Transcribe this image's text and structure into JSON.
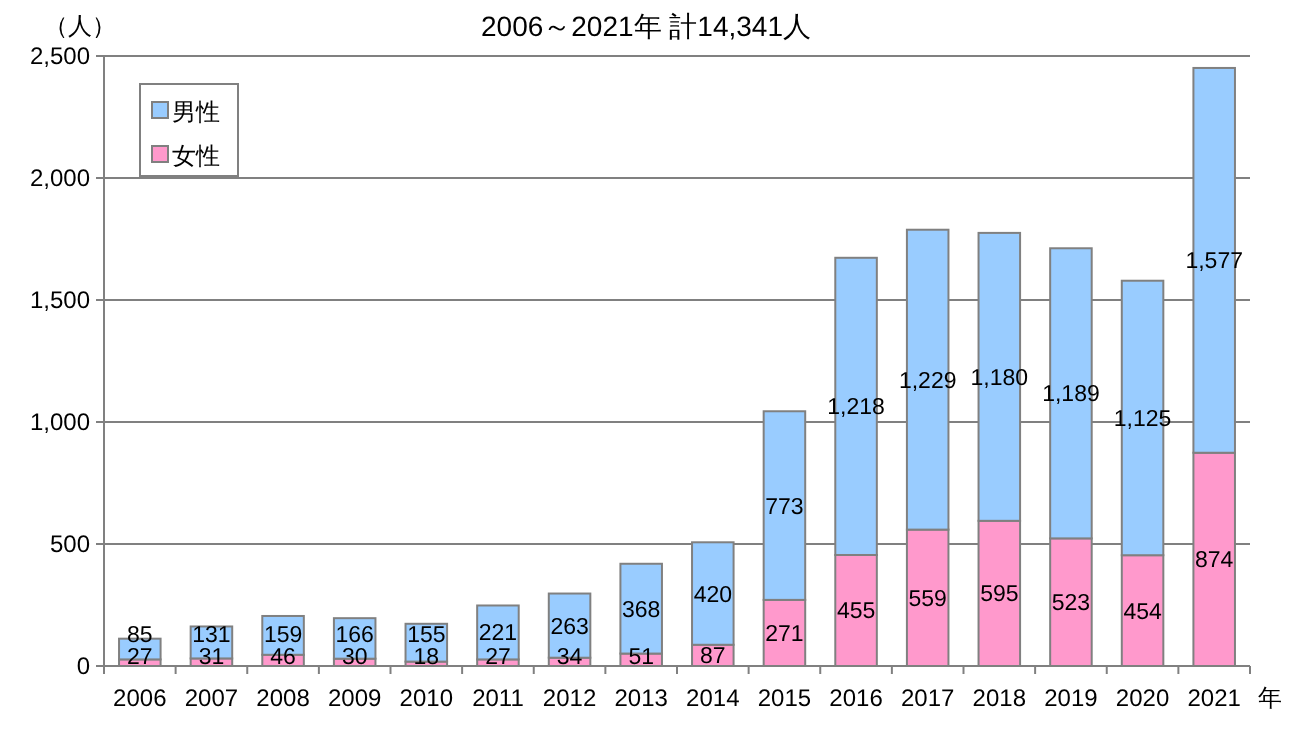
{
  "chart_data": {
    "type": "bar",
    "title": "2006～2021年  計14,341人",
    "ylabel": "（人）",
    "xlabel": "年",
    "stacked": true,
    "categories": [
      "2006",
      "2007",
      "2008",
      "2009",
      "2010",
      "2011",
      "2012",
      "2013",
      "2014",
      "2015",
      "2016",
      "2017",
      "2018",
      "2019",
      "2020",
      "2021"
    ],
    "series": [
      {
        "name": "女性",
        "color": "#ff99cc",
        "values": [
          27,
          31,
          46,
          30,
          18,
          27,
          34,
          51,
          87,
          271,
          455,
          559,
          595,
          523,
          454,
          874
        ],
        "value_labels": [
          "27",
          "31",
          "46",
          "30",
          "18",
          "27",
          "34",
          "51",
          "87",
          "271",
          "455",
          "559",
          "595",
          "523",
          "454",
          "874"
        ]
      },
      {
        "name": "男性",
        "color": "#99ccff",
        "values": [
          85,
          131,
          159,
          166,
          155,
          221,
          263,
          368,
          420,
          773,
          1218,
          1229,
          1180,
          1189,
          1125,
          1577
        ],
        "value_labels": [
          "85",
          "131",
          "159",
          "166",
          "155",
          "221",
          "263",
          "368",
          "420",
          "773",
          "1,218",
          "1,229",
          "1,180",
          "1,189",
          "1,125",
          "1,577"
        ]
      }
    ],
    "ylim": [
      0,
      2500
    ],
    "yticks": [
      {
        "value": 0,
        "label": "0"
      },
      {
        "value": 500,
        "label": "500"
      },
      {
        "value": 1000,
        "label": "1,000"
      },
      {
        "value": 1500,
        "label": "1,500"
      },
      {
        "value": 2000,
        "label": "2,000"
      },
      {
        "value": 2500,
        "label": "2,500"
      }
    ],
    "grid": "y",
    "legend": "top left"
  }
}
